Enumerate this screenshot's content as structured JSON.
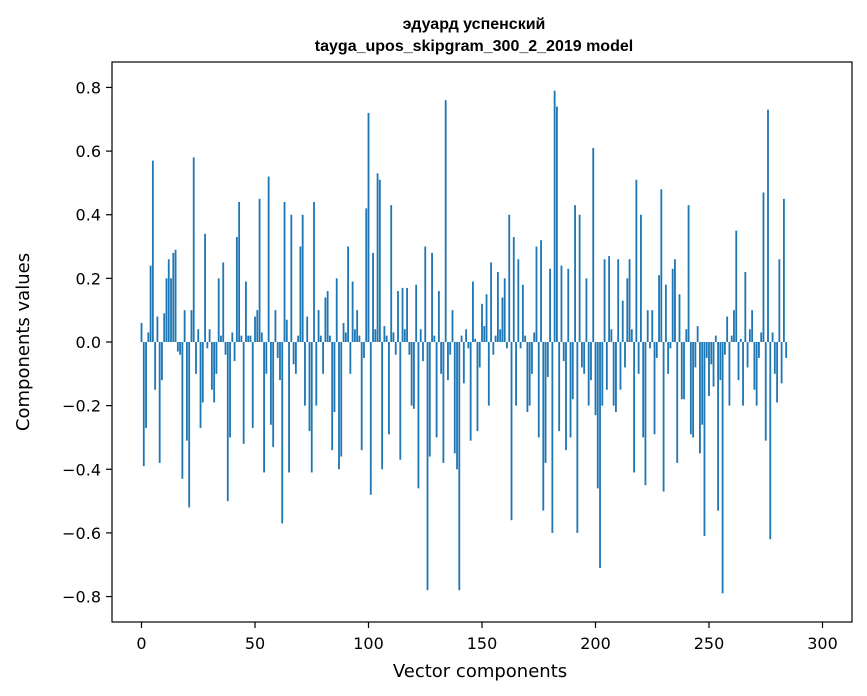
{
  "chart_data": {
    "type": "bar",
    "title_line1": "эдуард успенский",
    "title_line2": "tayga_upos_skipgram_300_2_2019 model",
    "xlabel": "Vector components",
    "ylabel": "Components values",
    "bar_color": "#1f77b4",
    "xlim": [
      -13,
      313
    ],
    "ylim": [
      -0.88,
      0.88
    ],
    "xticks": [
      0,
      50,
      100,
      150,
      200,
      250,
      300
    ],
    "xtick_labels": [
      "0",
      "50",
      "100",
      "150",
      "200",
      "250",
      "300"
    ],
    "yticks": [
      -0.8,
      -0.6,
      -0.4,
      -0.2,
      0.0,
      0.2,
      0.4,
      0.6,
      0.8
    ],
    "ytick_labels": [
      "−0.8",
      "−0.6",
      "−0.4",
      "−0.2",
      "0.0",
      "0.2",
      "0.4",
      "0.6",
      "0.8"
    ],
    "values": [
      0.06,
      -0.39,
      -0.27,
      0.03,
      0.24,
      0.57,
      -0.15,
      0.08,
      -0.38,
      -0.12,
      0.09,
      0.2,
      0.26,
      0.2,
      0.28,
      0.29,
      -0.03,
      -0.04,
      -0.43,
      0.1,
      -0.31,
      -0.52,
      0.1,
      0.58,
      -0.1,
      0.04,
      -0.27,
      -0.19,
      0.34,
      -0.02,
      0.04,
      -0.15,
      -0.19,
      -0.1,
      0.2,
      0.02,
      0.25,
      -0.04,
      -0.5,
      -0.3,
      0.03,
      -0.06,
      0.33,
      0.44,
      0.02,
      -0.32,
      0.19,
      0.02,
      0.02,
      -0.27,
      0.08,
      0.1,
      0.45,
      0.03,
      -0.41,
      -0.1,
      0.52,
      -0.26,
      -0.33,
      0.1,
      -0.05,
      -0.12,
      -0.57,
      0.44,
      0.07,
      -0.41,
      0.4,
      -0.07,
      -0.1,
      0.02,
      0.3,
      0.4,
      -0.2,
      0.08,
      -0.28,
      -0.41,
      0.44,
      -0.2,
      0.1,
      0.02,
      -0.1,
      0.14,
      0.16,
      0.02,
      -0.34,
      -0.22,
      0.2,
      -0.4,
      -0.36,
      0.06,
      0.03,
      0.3,
      -0.1,
      0.19,
      0.04,
      0.1,
      0.02,
      -0.34,
      -0.05,
      0.42,
      0.72,
      -0.48,
      0.28,
      0.04,
      0.53,
      0.51,
      -0.4,
      0.05,
      0.02,
      -0.29,
      0.43,
      0.03,
      -0.04,
      0.16,
      -0.37,
      0.17,
      0.04,
      0.17,
      -0.04,
      -0.2,
      -0.21,
      0.18,
      -0.46,
      0.04,
      -0.06,
      0.3,
      -0.78,
      -0.36,
      0.28,
      0.02,
      -0.3,
      0.16,
      -0.1,
      -0.38,
      0.76,
      -0.12,
      -0.04,
      0.1,
      -0.35,
      -0.4,
      -0.78,
      0.02,
      -0.13,
      0.04,
      -0.02,
      -0.31,
      0.19,
      0.01,
      -0.28,
      -0.08,
      0.12,
      0.05,
      0.15,
      -0.2,
      0.25,
      -0.04,
      0.02,
      0.22,
      0.04,
      0.14,
      0.2,
      -0.02,
      0.4,
      -0.56,
      0.33,
      -0.2,
      0.26,
      -0.02,
      0.18,
      0.02,
      -0.22,
      -0.2,
      -0.1,
      0.03,
      0.3,
      -0.3,
      0.32,
      -0.53,
      -0.38,
      -0.11,
      0.23,
      -0.6,
      0.79,
      0.74,
      -0.28,
      0.24,
      -0.06,
      -0.34,
      0.23,
      -0.3,
      -0.18,
      0.43,
      -0.6,
      0.4,
      -0.08,
      -0.1,
      0.2,
      -0.2,
      -0.12,
      0.61,
      -0.23,
      -0.46,
      -0.71,
      -0.2,
      0.26,
      -0.15,
      0.27,
      0.04,
      -0.2,
      -0.22,
      0.26,
      -0.15,
      0.13,
      -0.08,
      0.2,
      0.26,
      0.04,
      -0.41,
      0.51,
      -0.1,
      0.4,
      -0.3,
      -0.45,
      0.1,
      -0.02,
      0.1,
      -0.29,
      -0.05,
      0.21,
      0.48,
      -0.47,
      0.18,
      -0.1,
      -0.02,
      0.23,
      0.26,
      -0.38,
      0.15,
      -0.18,
      -0.18,
      0.04,
      0.43,
      -0.29,
      -0.3,
      -0.08,
      0.05,
      -0.35,
      -0.26,
      -0.61,
      -0.05,
      -0.17,
      -0.07,
      -0.14,
      0.02,
      -0.53,
      -0.12,
      -0.79,
      -0.04,
      0.08,
      -0.2,
      0.02,
      0.1,
      0.35,
      -0.12,
      0.01,
      -0.2,
      0.22,
      -0.08,
      0.04,
      0.1,
      -0.15,
      -0.2,
      -0.05,
      0.03,
      0.47,
      -0.31,
      0.73,
      -0.62,
      0.03,
      -0.1,
      -0.19,
      0.26,
      -0.13,
      0.45,
      -0.05
    ]
  }
}
